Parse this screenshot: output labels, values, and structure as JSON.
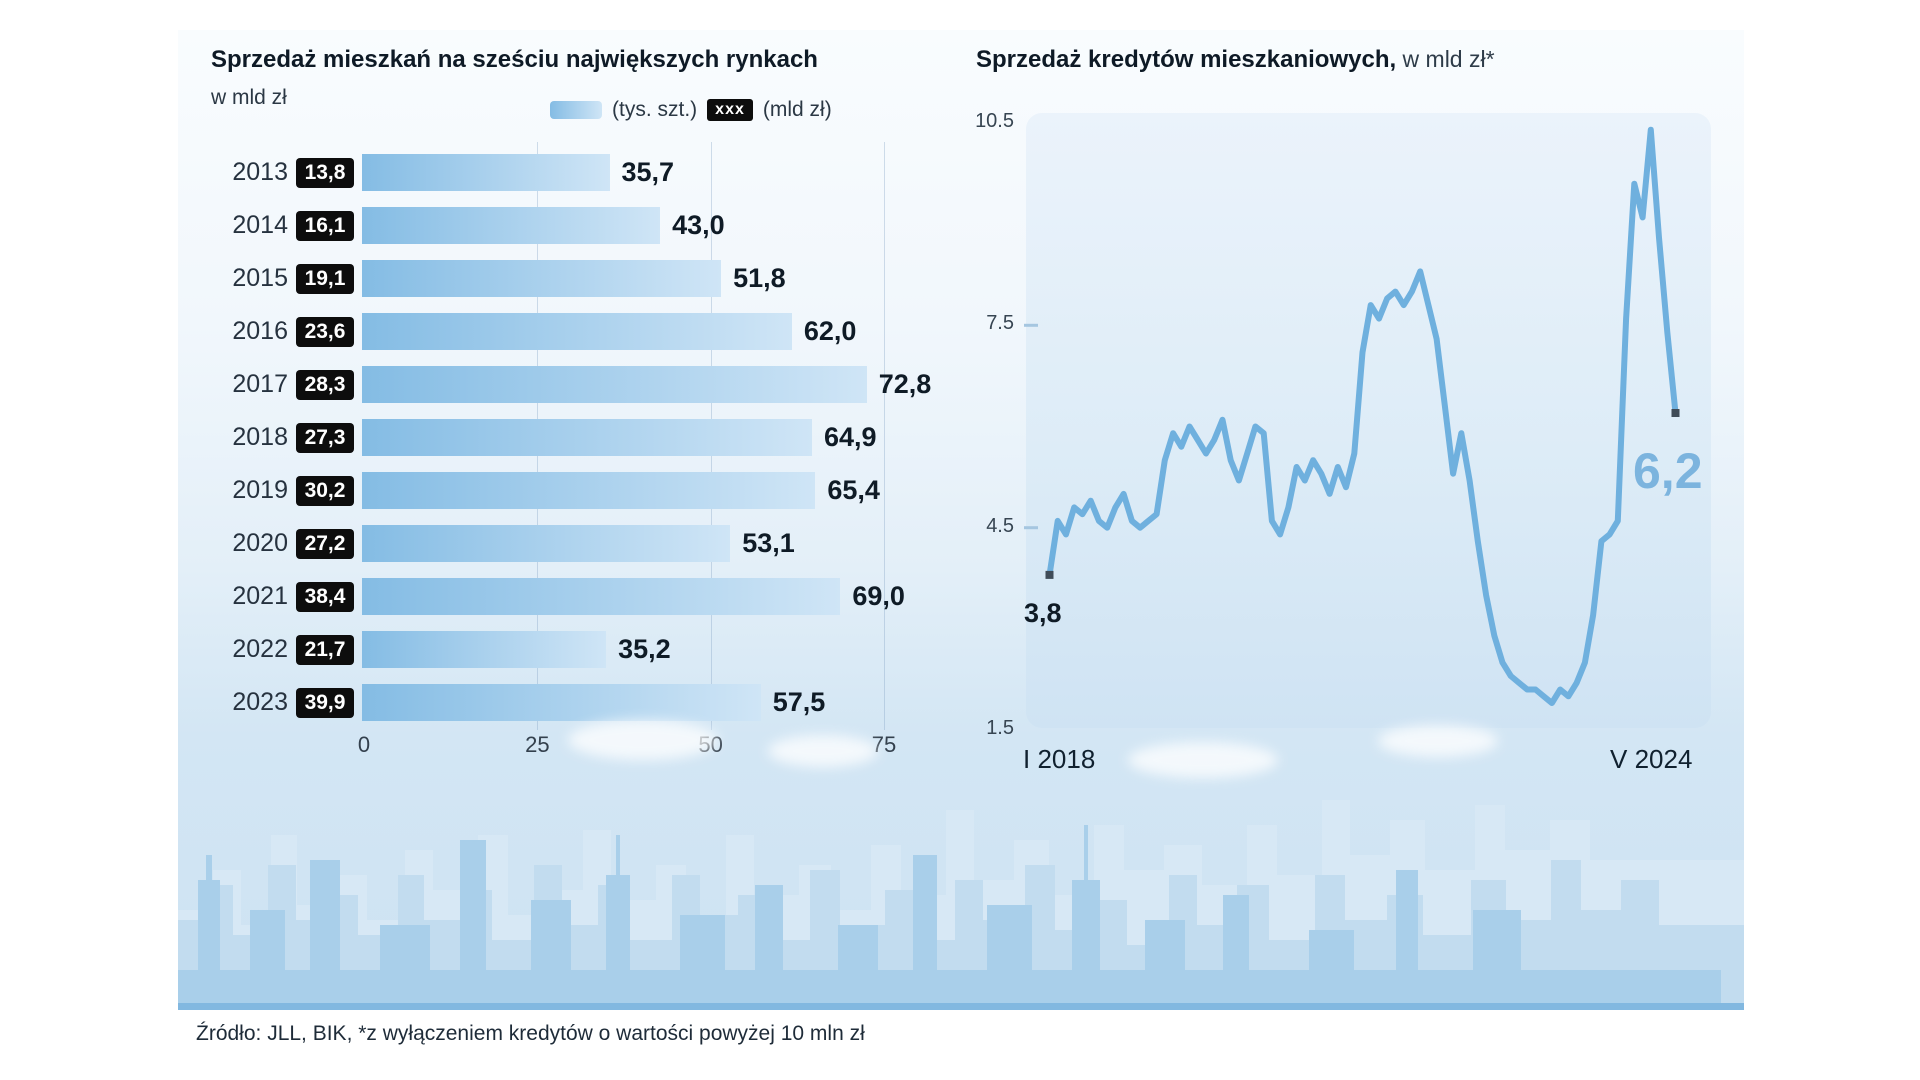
{
  "left_chart": {
    "title": "Sprzedaż mieszkań na sześciu największych rynkach",
    "subtitle": "w mld zł",
    "legend": {
      "bar_unit": "(tys. szt.)",
      "badge_text": "xxx",
      "badge_unit": "(mld zł)"
    }
  },
  "right_chart": {
    "title": "Sprzedaż kredytów mieszkaniowych,",
    "title_unit": " w mld zł*",
    "start_value_label": "3,8",
    "end_value_label": "6,2",
    "x_start_label": "I 2018",
    "x_end_label": "V 2024"
  },
  "footer": {
    "source": "Źródło: JLL, BIK, *z wyłączeniem kredytów o wartości powyżej 10 mln zł"
  },
  "colors": {
    "bar_gradient_start": "#84bce4",
    "bar_gradient_end": "#cfe5f6",
    "line": "#6fb0de",
    "accent_value_text": "#7cb4de",
    "badge_bg": "#0d0d0d",
    "dark_text": "#0f1b26",
    "background": "#cde2f2"
  },
  "chart_data": [
    {
      "type": "bar",
      "orientation": "horizontal",
      "title": "Sprzedaż mieszkań na sześciu największych rynkach",
      "units": {
        "bars": "tys. szt.",
        "badges": "mld zł"
      },
      "categories": [
        "2013",
        "2014",
        "2015",
        "2016",
        "2017",
        "2018",
        "2019",
        "2020",
        "2021",
        "2022",
        "2023"
      ],
      "series": [
        {
          "name": "sprzedaż (tys. szt.)",
          "values": [
            35.7,
            43.0,
            51.8,
            62.0,
            72.8,
            64.9,
            65.4,
            53.1,
            69.0,
            35.2,
            57.5
          ]
        },
        {
          "name": "wartość (mld zł)",
          "values": [
            13.8,
            16.1,
            19.1,
            23.6,
            28.3,
            27.3,
            30.2,
            27.2,
            38.4,
            21.7,
            39.9
          ]
        }
      ],
      "bar_labels": [
        "35,7",
        "43,0",
        "51,8",
        "62,0",
        "72,8",
        "64,9",
        "65,4",
        "53,1",
        "69,0",
        "35,2",
        "57,5"
      ],
      "badge_labels": [
        "13,8",
        "16,1",
        "19,1",
        "23,6",
        "28,3",
        "27,3",
        "30,2",
        "27,2",
        "38,4",
        "21,7",
        "39,9"
      ],
      "xticks": [
        0,
        25,
        50,
        75
      ],
      "xlim": [
        0,
        75
      ],
      "grid": true
    },
    {
      "type": "line",
      "title": "Sprzedaż kredytów mieszkaniowych, w mld zł*",
      "x_start_label": "I 2018",
      "x_end_label": "V 2024",
      "x_frequency": "monthly",
      "yticks": [
        10.5,
        7.5,
        4.5,
        1.5
      ],
      "ylim": [
        1.5,
        10.5
      ],
      "annotated_points": [
        {
          "label": "3,8",
          "value": 3.8,
          "position": "start"
        },
        {
          "label": "6,2",
          "value": 6.2,
          "position": "end"
        }
      ],
      "values": [
        3.8,
        4.6,
        4.4,
        4.8,
        4.7,
        4.9,
        4.6,
        4.5,
        4.8,
        5.0,
        4.6,
        4.5,
        4.6,
        4.7,
        5.5,
        5.9,
        5.7,
        6.0,
        5.8,
        5.6,
        5.8,
        6.1,
        5.5,
        5.2,
        5.6,
        6.0,
        5.9,
        4.6,
        4.4,
        4.8,
        5.4,
        5.2,
        5.5,
        5.3,
        5.0,
        5.4,
        5.1,
        5.6,
        7.1,
        7.8,
        7.6,
        7.9,
        8.0,
        7.8,
        8.0,
        8.3,
        7.8,
        7.3,
        6.3,
        5.3,
        5.9,
        5.2,
        4.3,
        3.5,
        2.9,
        2.5,
        2.3,
        2.2,
        2.1,
        2.1,
        2.0,
        1.9,
        2.1,
        2.0,
        2.2,
        2.5,
        3.2,
        4.3,
        4.4,
        4.6,
        7.6,
        9.6,
        9.1,
        10.4,
        8.8,
        7.4,
        6.2
      ]
    }
  ]
}
